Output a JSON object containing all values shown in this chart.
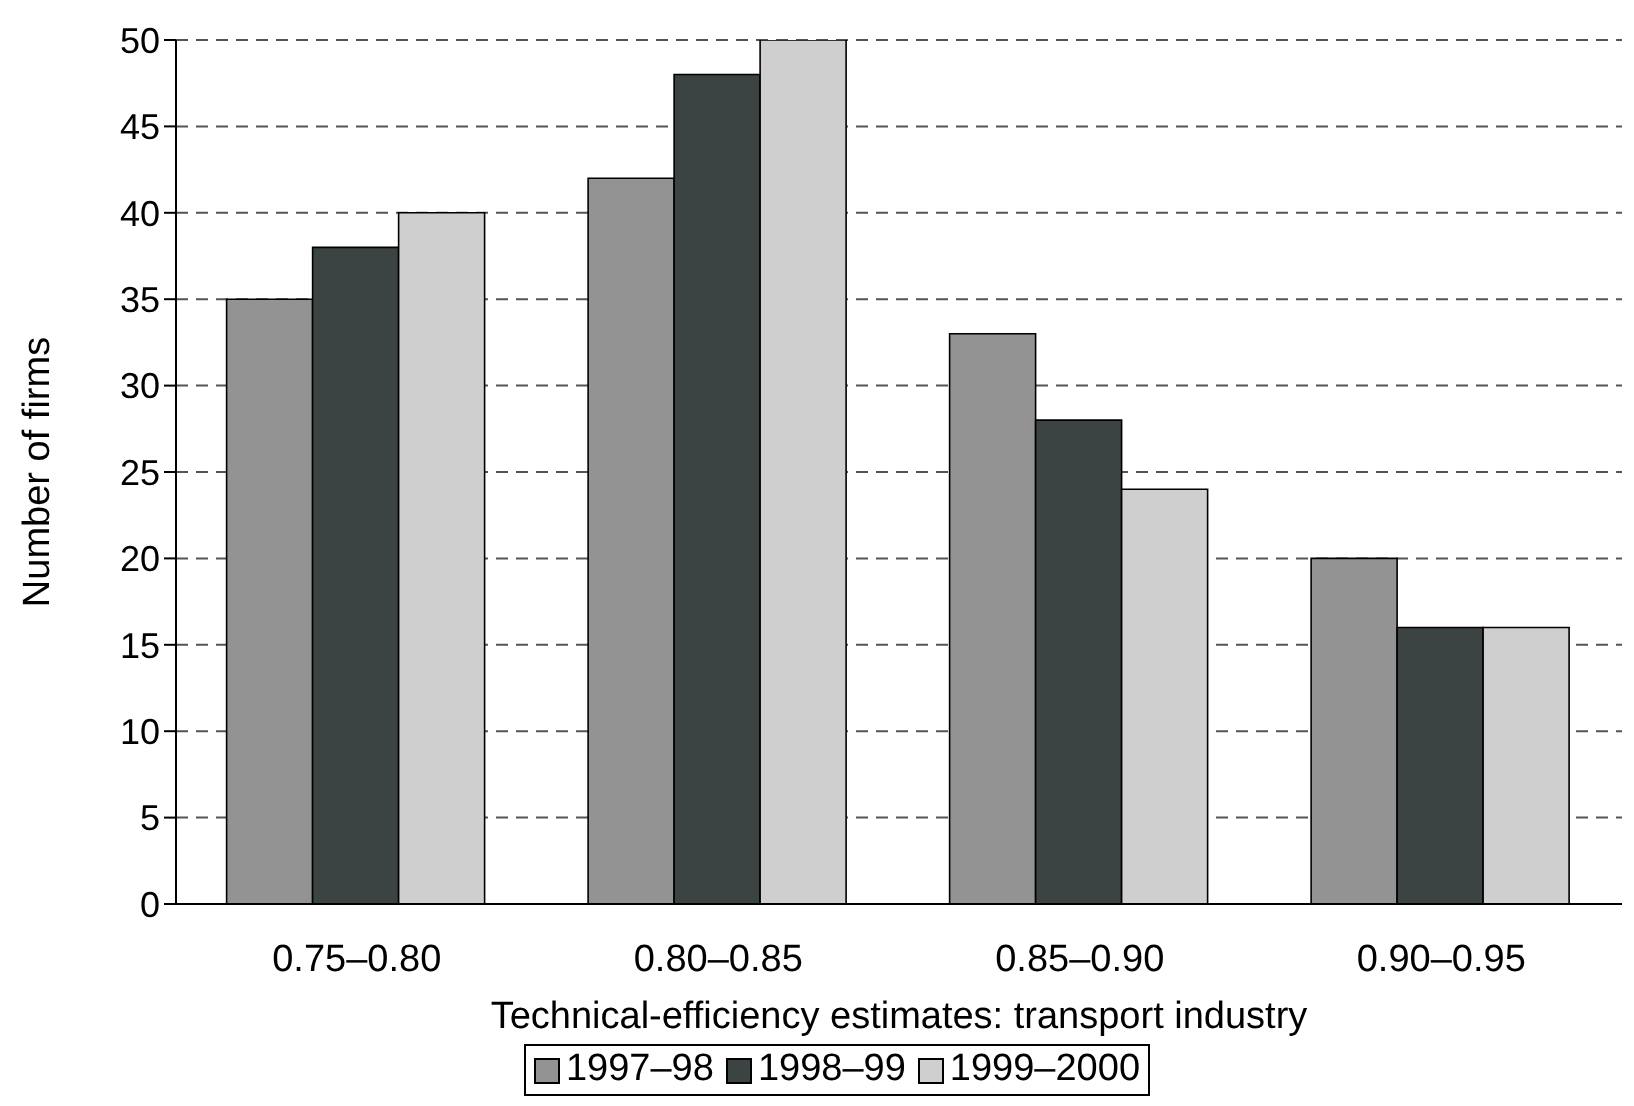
{
  "chart_data": {
    "type": "bar",
    "xlabel": "Technical-efficiency estimates: transport industry",
    "ylabel": "Number of firms",
    "categories": [
      "0.75–0.80",
      "0.80–0.85",
      "0.85–0.90",
      "0.90–0.95"
    ],
    "series": [
      {
        "name": "1997–98",
        "color": "#939393",
        "values": [
          35,
          42,
          33,
          20
        ]
      },
      {
        "name": "1998–99",
        "color": "#3b4443",
        "values": [
          38,
          48,
          28,
          16
        ]
      },
      {
        "name": "1999–2000",
        "color": "#cfcfcf",
        "values": [
          40,
          50,
          24,
          16
        ]
      }
    ],
    "ylim": [
      0,
      50
    ],
    "yticks": [
      0,
      5,
      10,
      15,
      20,
      25,
      30,
      35,
      40,
      45,
      50
    ],
    "grid": "y",
    "legend": "bottom"
  }
}
